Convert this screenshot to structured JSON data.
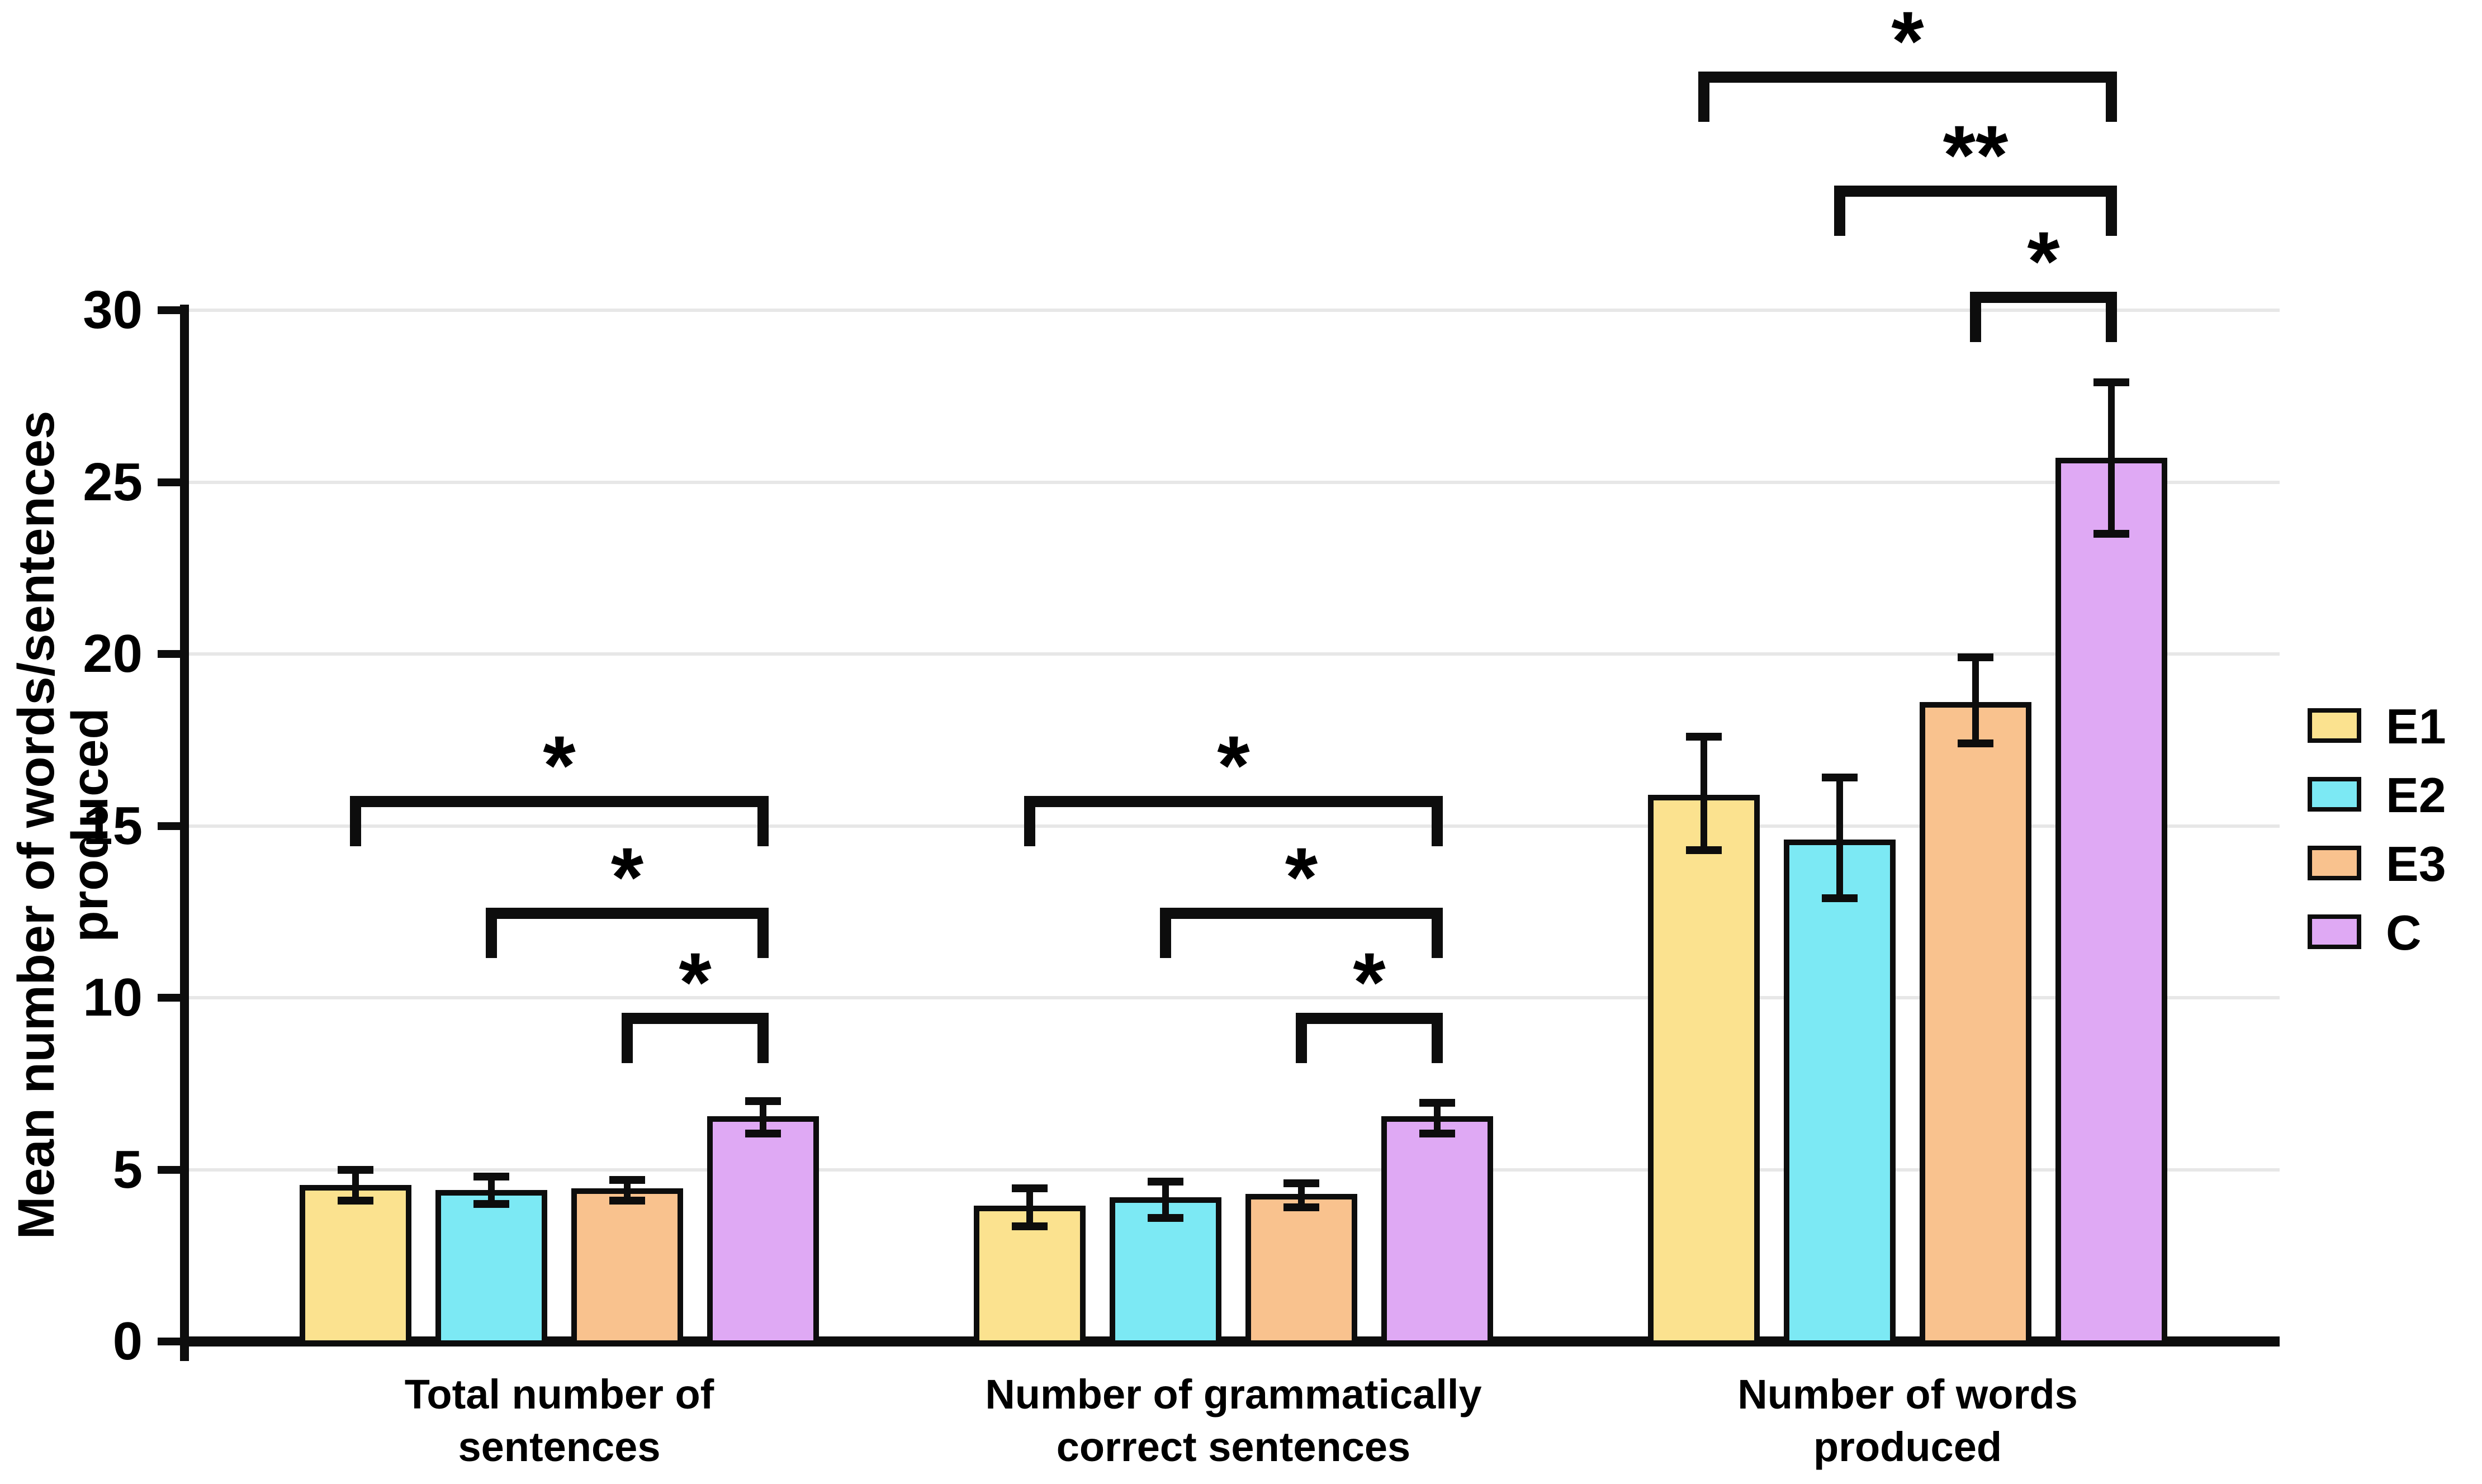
{
  "chart_data": {
    "type": "bar",
    "title": "",
    "xlabel": "",
    "ylabel": "Mean number of words/sentences produced",
    "ylim": [
      0,
      30
    ],
    "yticks": [
      0,
      5,
      10,
      15,
      20,
      25,
      30
    ],
    "grid": true,
    "legend_position": "right",
    "background_color": "#ffffff",
    "axis_color": "#0d0d0d",
    "grid_color": "#e7e7e7",
    "categories": [
      [
        "Total number of",
        "sentences"
      ],
      [
        "Number of grammatically",
        "correct sentences"
      ],
      [
        "Number of words",
        "produced"
      ]
    ],
    "series": [
      {
        "name": "E1",
        "color": "#FBE28F",
        "values": [
          4.55,
          3.95,
          15.9
        ],
        "err_low": [
          0.45,
          0.6,
          1.6
        ],
        "err_high": [
          0.45,
          0.5,
          1.7
        ]
      },
      {
        "name": "E2",
        "color": "#7CE9F4",
        "values": [
          4.4,
          4.2,
          14.6
        ],
        "err_low": [
          0.4,
          0.6,
          1.7
        ],
        "err_high": [
          0.4,
          0.45,
          1.8
        ]
      },
      {
        "name": "E3",
        "color": "#F9C28E",
        "values": [
          4.45,
          4.3,
          18.6
        ],
        "err_low": [
          0.35,
          0.4,
          1.2
        ],
        "err_high": [
          0.25,
          0.3,
          1.3
        ]
      },
      {
        "name": "C",
        "color": "#DFA9F4",
        "values": [
          6.55,
          6.55,
          25.7
        ],
        "err_low": [
          0.5,
          0.5,
          2.2
        ],
        "err_high": [
          0.45,
          0.4,
          2.2
        ]
      }
    ],
    "significance": [
      {
        "group": 0,
        "from": 0,
        "to": 3,
        "level": 0,
        "stars": "*"
      },
      {
        "group": 0,
        "from": 1,
        "to": 3,
        "level": 1,
        "stars": "*"
      },
      {
        "group": 0,
        "from": 2,
        "to": 3,
        "level": 2,
        "stars": "*"
      },
      {
        "group": 1,
        "from": 0,
        "to": 3,
        "level": 0,
        "stars": "*"
      },
      {
        "group": 1,
        "from": 1,
        "to": 3,
        "level": 1,
        "stars": "*"
      },
      {
        "group": 1,
        "from": 2,
        "to": 3,
        "level": 2,
        "stars": "*"
      },
      {
        "group": 2,
        "from": 0,
        "to": 3,
        "level": 0,
        "stars": "*"
      },
      {
        "group": 2,
        "from": 1,
        "to": 3,
        "level": 1,
        "stars": "**"
      },
      {
        "group": 2,
        "from": 2,
        "to": 3,
        "level": 2,
        "stars": "*"
      }
    ]
  }
}
